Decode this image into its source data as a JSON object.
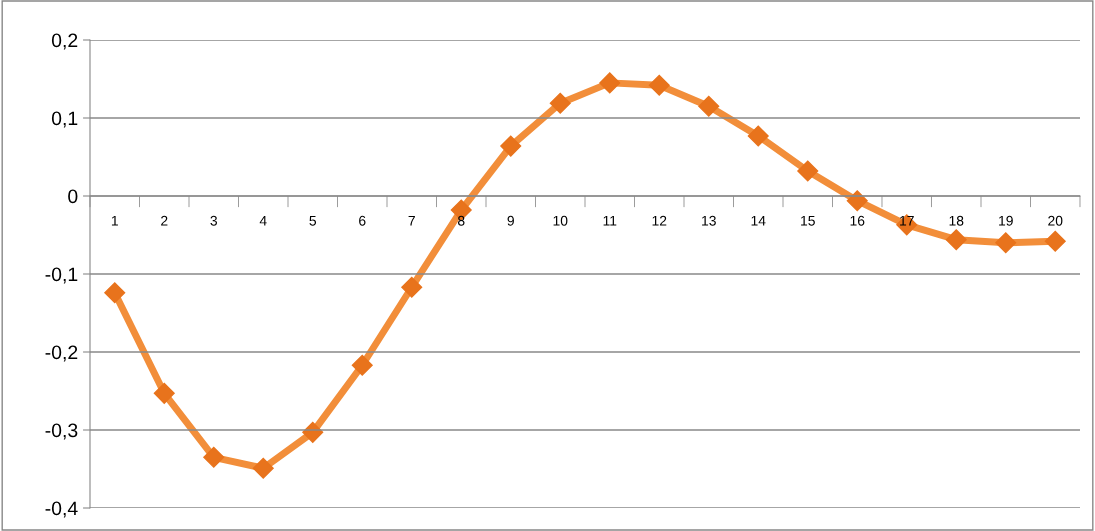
{
  "chart_data": {
    "type": "line",
    "categories": [
      "1",
      "2",
      "3",
      "4",
      "5",
      "6",
      "7",
      "8",
      "9",
      "10",
      "11",
      "12",
      "13",
      "14",
      "15",
      "16",
      "17",
      "18",
      "19",
      "20"
    ],
    "series": [
      {
        "color": "#f28e3a",
        "values": [
          -0.124,
          -0.253,
          -0.335,
          -0.349,
          -0.303,
          -0.217,
          -0.117,
          -0.018,
          0.064,
          0.119,
          0.145,
          0.142,
          0.115,
          0.077,
          0.032,
          -0.006,
          -0.037,
          -0.056,
          -0.06,
          -0.058
        ]
      }
    ],
    "ylim": [
      -0.4,
      0.2
    ],
    "yticks": [
      {
        "value": -0.4,
        "label": "-0,4"
      },
      {
        "value": -0.3,
        "label": "-0,3"
      },
      {
        "value": -0.2,
        "label": "-0,2"
      },
      {
        "value": -0.1,
        "label": "-0,1"
      },
      0,
      {
        "value": 0.1,
        "label": "0,1"
      },
      {
        "value": 0.2,
        "label": "0,2"
      }
    ],
    "grid": "y",
    "marker": "diamond",
    "line_style": "solid"
  }
}
